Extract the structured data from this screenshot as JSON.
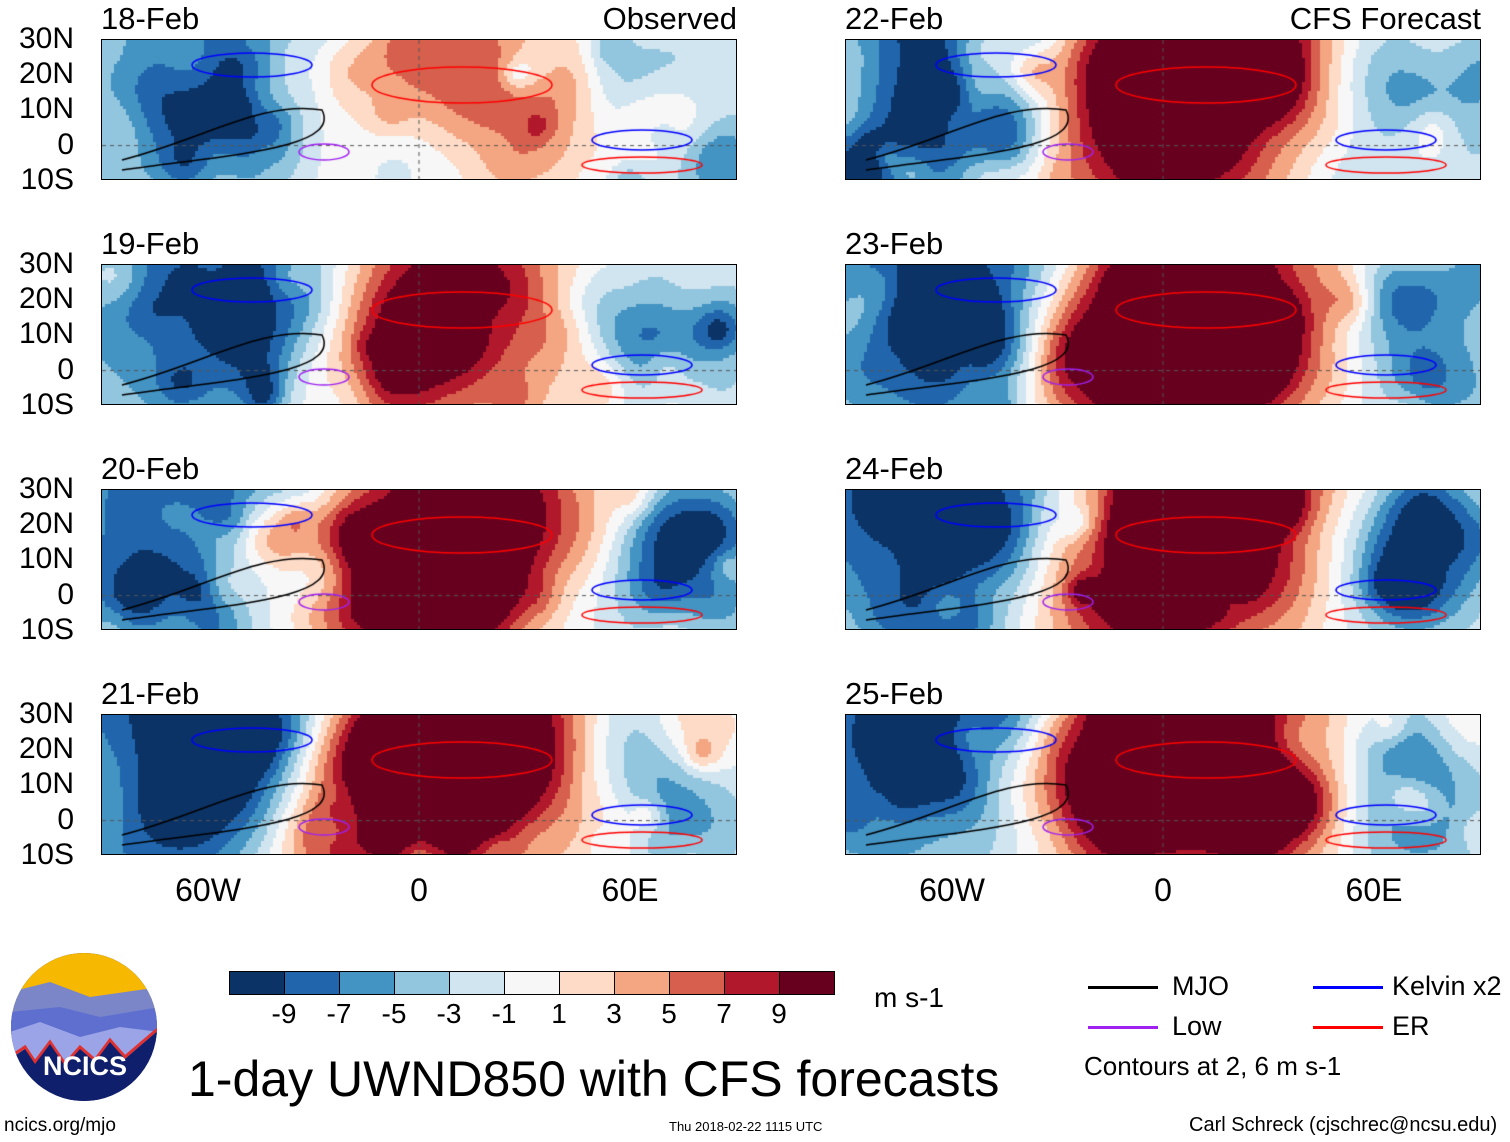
{
  "panels": [
    {
      "date": "18-Feb",
      "label": "Observed",
      "day": 0,
      "type": "obs"
    },
    {
      "date": "19-Feb",
      "label": "",
      "day": 1,
      "type": "obs"
    },
    {
      "date": "20-Feb",
      "label": "",
      "day": 2,
      "type": "obs"
    },
    {
      "date": "21-Feb",
      "label": "",
      "day": 3,
      "type": "obs"
    },
    {
      "date": "22-Feb",
      "label": "CFS Forecast",
      "day": 4,
      "type": "fc"
    },
    {
      "date": "23-Feb",
      "label": "",
      "day": 5,
      "type": "fc"
    },
    {
      "date": "24-Feb",
      "label": "",
      "day": 6,
      "type": "fc"
    },
    {
      "date": "25-Feb",
      "label": "",
      "day": 7,
      "type": "fc"
    }
  ],
  "lat_labels": [
    "30N",
    "20N",
    "10N",
    "0",
    "10S"
  ],
  "lon_labels": [
    "60W",
    "0",
    "60E"
  ],
  "colorbar": {
    "colors": [
      "#0b3366",
      "#2166ac",
      "#4393c3",
      "#92c5de",
      "#d1e5f0",
      "#f7f7f7",
      "#fddbc7",
      "#f4a582",
      "#d6604d",
      "#b2182b",
      "#67001f"
    ],
    "labels": [
      "-9",
      "-7",
      "-5",
      "-3",
      "-1",
      "1",
      "3",
      "5",
      "7",
      "9"
    ],
    "units": "m s-1"
  },
  "legend": {
    "items": [
      {
        "label": "MJO",
        "color": "#000000"
      },
      {
        "label": "Low",
        "color": "#a020f0"
      },
      {
        "label": "Kelvin x2",
        "color": "#0000ff"
      },
      {
        "label": "ER",
        "color": "#ff0000"
      }
    ],
    "note": "Contours at 2, 6 m s-1"
  },
  "title": "1-day UWND850 with CFS forecasts",
  "logo_text": "NCICS",
  "footer": {
    "left": "ncics.org/mjo",
    "center": "Thu 2018-02-22 1115 UTC",
    "right": "Carl Schreck (cjschrec@ncsu.edu)"
  }
}
